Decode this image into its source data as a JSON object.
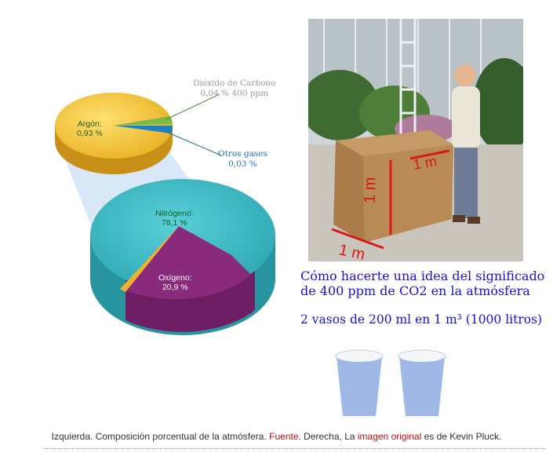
{
  "left_figure": {
    "argon": {
      "name": "Argón:",
      "value": "0,93 %"
    },
    "co2": {
      "name": "Dióxido de Carbono",
      "value": "0,04 %  400 ppm"
    },
    "otros": {
      "name": "Otros gases",
      "value": "0,03 %"
    },
    "nitrogeno": {
      "name": "Nitrógeno:",
      "value": "78,1 %"
    },
    "oxigeno": {
      "name": "Oxígeno:",
      "value": "20,9 %"
    }
  },
  "right_figure": {
    "box_labels": {
      "front": "1 m",
      "side": "1 m",
      "top": "1 m"
    },
    "headline_line1": "Cómo hacerte una idea del significado",
    "headline_line2": "de 400 ppm de CO2 en la atmósfera",
    "subline": "2 vasos de 200 ml en 1 m³ (1000 litros)"
  },
  "caption": {
    "part1": "Izquierda. Composición porcentual de la atmósfera. ",
    "link1": "Fuente",
    "part2": ". Derecha, La ",
    "link2": "imagen original",
    "part3": " es de Kevin Pluck."
  },
  "colors": {
    "argon": "#f0c030",
    "nitrogen": "#3ab8c0",
    "oxygen": "#8a2a7a",
    "text_blue": "#1c10d8",
    "link_red": "#c0130c",
    "arrow_red": "#d81818",
    "cup_blue": "#9fb8e6"
  }
}
